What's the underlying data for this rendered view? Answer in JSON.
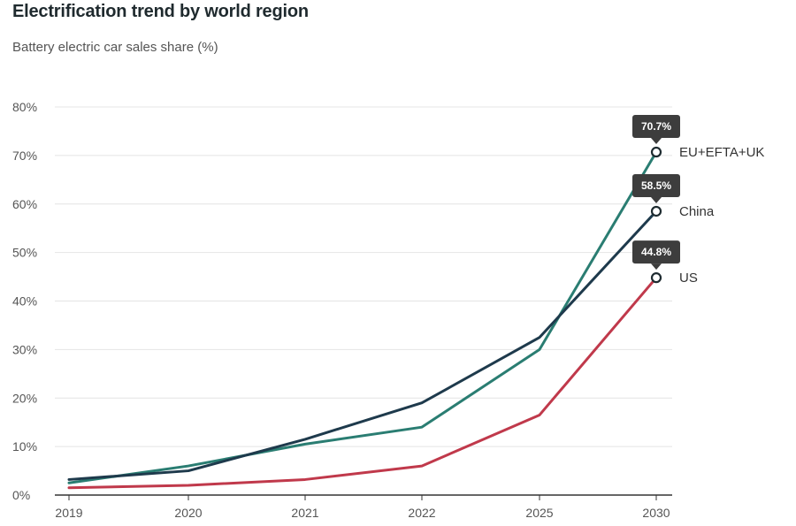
{
  "header": {
    "title": "Electrification trend by world region",
    "subtitle": "Battery electric car sales share (%)"
  },
  "chart_data": {
    "type": "line",
    "title": "Electrification trend by world region",
    "subtitle": "Battery electric car sales share (%)",
    "xlabel": "",
    "ylabel": "",
    "categories": [
      "2019",
      "2020",
      "2021",
      "2022",
      "2025",
      "2030"
    ],
    "y_ticks": [
      "0%",
      "10%",
      "20%",
      "30%",
      "40%",
      "50%",
      "60%",
      "70%",
      "80%"
    ],
    "ylim": [
      0,
      80
    ],
    "grid": true,
    "legend": "direct labels at line ends (right)",
    "series": [
      {
        "name": "EU+EFTA+UK",
        "color": "#2a7d72",
        "values": [
          2.5,
          6,
          10.5,
          14,
          30,
          70.7
        ],
        "end_label": "70.7%"
      },
      {
        "name": "China",
        "color": "#1e3a4c",
        "values": [
          3.2,
          5,
          11.5,
          19,
          32.5,
          58.5
        ],
        "end_label": "58.5%"
      },
      {
        "name": "US",
        "color": "#c0394b",
        "values": [
          1.5,
          2,
          3.2,
          6,
          16.5,
          44.8
        ],
        "end_label": "44.8%"
      }
    ]
  }
}
